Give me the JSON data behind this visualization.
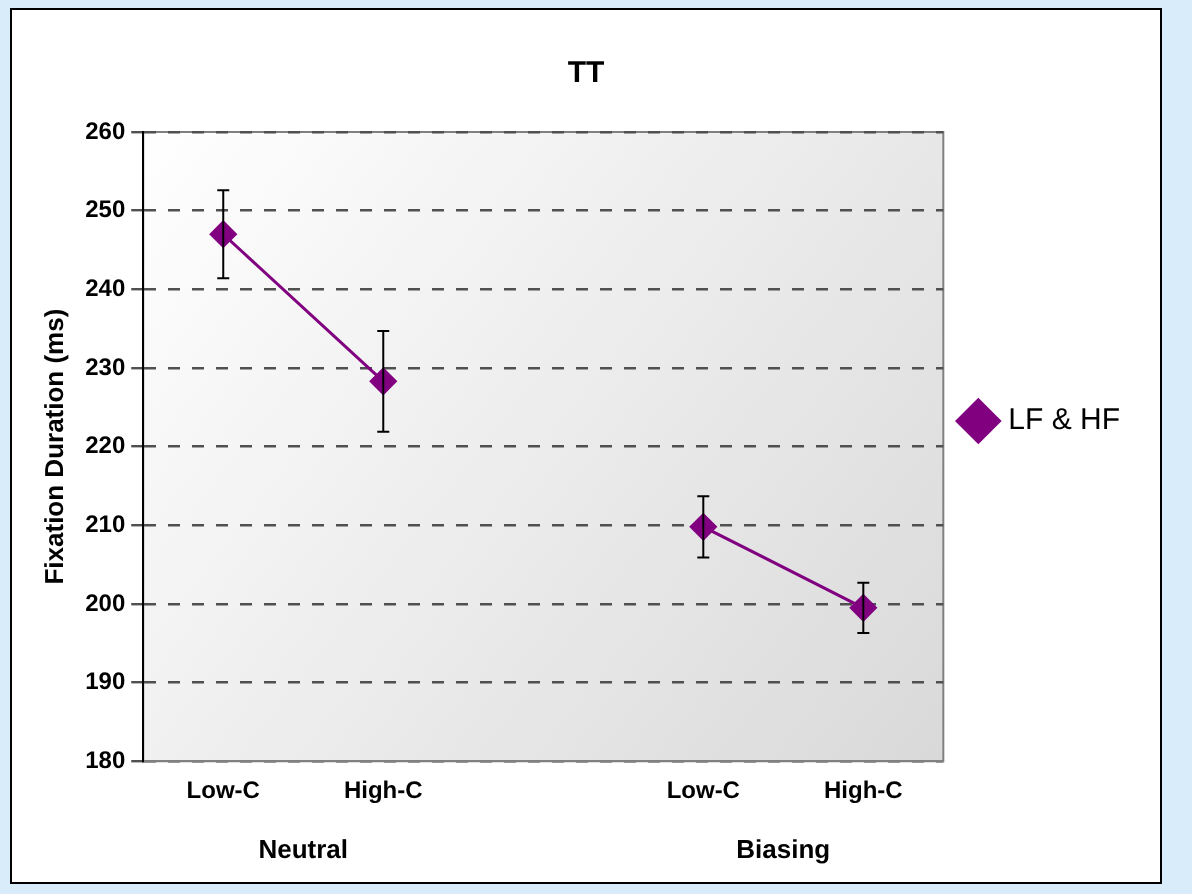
{
  "chart_data": {
    "type": "line",
    "title": "TT",
    "ylabel": "Fixation Duration (ms)",
    "categories": [
      "Low-C",
      "High-C",
      null,
      "Low-C",
      "High-C"
    ],
    "series": [
      {
        "name": "LF & HF",
        "color": "#800080",
        "values": [
          247.0,
          228.3,
          null,
          209.8,
          199.5
        ],
        "errors": [
          5.6,
          6.4,
          null,
          3.9,
          3.2
        ]
      }
    ],
    "annotations": [
      "Neutral",
      "Biasing"
    ],
    "ylim": [
      180,
      260
    ],
    "yticks": [
      180,
      190,
      200,
      210,
      220,
      230,
      240,
      250,
      260
    ],
    "grid": "y",
    "marker": "diamond",
    "legend": "right"
  }
}
